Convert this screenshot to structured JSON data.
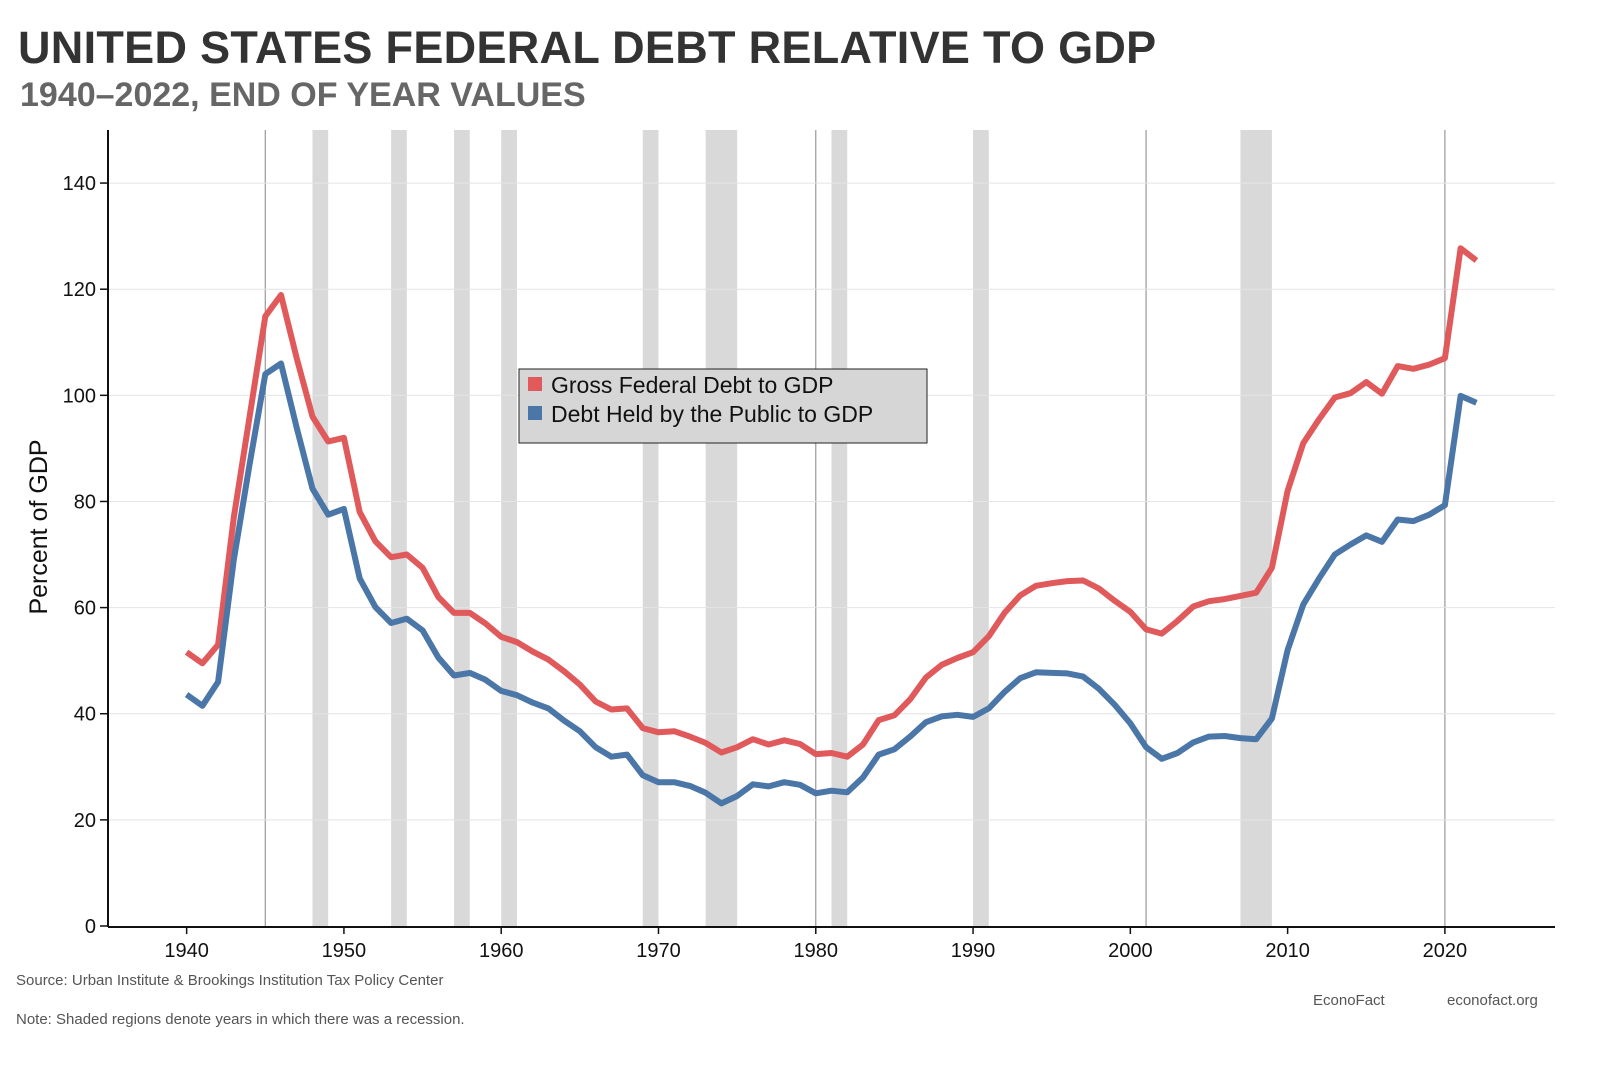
{
  "header": {
    "title": "UNITED STATES FEDERAL DEBT RELATIVE TO GDP",
    "subtitle": "1940–2022, END OF YEAR VALUES"
  },
  "footer": {
    "source": "Source: Urban Institute & Brookings Institution Tax Policy Center",
    "note": "Note: Shaded regions denote years in which there was a recession.",
    "brand": "EconoFact",
    "url": "econofact.org"
  },
  "chart_data": {
    "type": "line",
    "title": "UNITED STATES FEDERAL DEBT RELATIVE TO GDP",
    "subtitle": "1940–2022, END OF YEAR VALUES",
    "xlabel": "",
    "ylabel": "Percent of GDP",
    "xlim": [
      1935,
      2027
    ],
    "ylim": [
      0,
      150
    ],
    "xticks": [
      1940,
      1950,
      1960,
      1970,
      1980,
      1990,
      2000,
      2010,
      2020
    ],
    "yticks": [
      0,
      20,
      40,
      60,
      80,
      100,
      120,
      140
    ],
    "grid": "horizontal",
    "legend_position": "center",
    "recessions": [
      [
        1945,
        1945
      ],
      [
        1948,
        1949
      ],
      [
        1953,
        1954
      ],
      [
        1957,
        1958
      ],
      [
        1960,
        1961
      ],
      [
        1969,
        1970
      ],
      [
        1973,
        1975
      ],
      [
        1980,
        1980
      ],
      [
        1981,
        1982
      ],
      [
        1990,
        1991
      ],
      [
        2001,
        2001
      ],
      [
        2007,
        2009
      ],
      [
        2020,
        2020
      ]
    ],
    "x": [
      1940,
      1941,
      1942,
      1943,
      1944,
      1945,
      1946,
      1947,
      1948,
      1949,
      1950,
      1951,
      1952,
      1953,
      1954,
      1955,
      1956,
      1957,
      1958,
      1959,
      1960,
      1961,
      1962,
      1963,
      1964,
      1965,
      1966,
      1967,
      1968,
      1969,
      1970,
      1971,
      1972,
      1973,
      1974,
      1975,
      1976,
      1977,
      1978,
      1979,
      1980,
      1981,
      1982,
      1983,
      1984,
      1985,
      1986,
      1987,
      1988,
      1989,
      1990,
      1991,
      1992,
      1993,
      1994,
      1995,
      1996,
      1997,
      1998,
      1999,
      2000,
      2001,
      2002,
      2003,
      2004,
      2005,
      2006,
      2007,
      2008,
      2009,
      2010,
      2011,
      2012,
      2013,
      2014,
      2015,
      2016,
      2017,
      2018,
      2019,
      2020,
      2021,
      2022
    ],
    "series": [
      {
        "name": "Gross Federal Debt to GDP",
        "color": "#e05a5c",
        "values": [
          51.6,
          49.5,
          53,
          77,
          96,
          114.9,
          118.9,
          107,
          96,
          91.3,
          92,
          78,
          72.5,
          69.5,
          70,
          67.5,
          62,
          59,
          59,
          57,
          54.5,
          53.5,
          51.7,
          50.2,
          48,
          45.5,
          42.3,
          40.8,
          41,
          37.3,
          36.5,
          36.7,
          35.7,
          34.5,
          32.7,
          33.7,
          35.2,
          34.2,
          35,
          34.3,
          32.4,
          32.6,
          31.9,
          34.2,
          38.8,
          39.7,
          42.7,
          46.8,
          49.2,
          50.5,
          51.6,
          54.6,
          59,
          62.3,
          64.1,
          64.6,
          65,
          65.1,
          63.6,
          61.3,
          59.2,
          55.9,
          55.1,
          57.5,
          60.2,
          61.2,
          61.6,
          62.2,
          62.8,
          67.5,
          82,
          91,
          95.5,
          99.6,
          100.4,
          102.5,
          100.3,
          105.5,
          105,
          105.8,
          107,
          127.7,
          125.4
        ]
      },
      {
        "name": "Debt Held by the Public to GDP",
        "color": "#4a76a8",
        "values": [
          43.6,
          41.5,
          46,
          69,
          87,
          104,
          106,
          93.9,
          82.4,
          77.5,
          78.6,
          65.5,
          60.1,
          57.1,
          57.9,
          55.7,
          50.6,
          47.2,
          47.7,
          46.4,
          44.3,
          43.5,
          42.1,
          41,
          38.7,
          36.7,
          33.7,
          31.9,
          32.3,
          28.4,
          27.1,
          27.1,
          26.4,
          25.1,
          23.1,
          24.5,
          26.7,
          26.3,
          27.1,
          26.6,
          25,
          25.5,
          25.2,
          28,
          32.3,
          33.3,
          35.7,
          38.4,
          39.5,
          39.8,
          39.4,
          41,
          44.1,
          46.7,
          47.8,
          47.7,
          47.6,
          47,
          44.7,
          41.7,
          38.2,
          33.7,
          31.5,
          32.6,
          34.6,
          35.7,
          35.8,
          35.4,
          35.2,
          39.1,
          52,
          60.6,
          65.5,
          70,
          71.9,
          73.6,
          72.4,
          76.6,
          76.3,
          77.5,
          79.3,
          99.9,
          98.6
        ]
      }
    ]
  }
}
